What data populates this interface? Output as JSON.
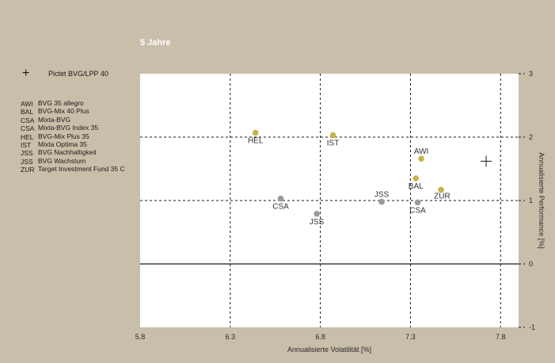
{
  "period_title": "5 Jahre",
  "legend": {
    "benchmark": {
      "symbol": "+",
      "name": "Pictet BVG/LPP 40"
    },
    "items": [
      {
        "code": "AWI",
        "name": "BVG 35 allegro"
      },
      {
        "code": "BAL",
        "name": "BVG-Mix 40 Plus"
      },
      {
        "code": "CSA",
        "name": "Mixta-BVG"
      },
      {
        "code": "CSA",
        "name": "Mixta-BVG Index 35"
      },
      {
        "code": "HEL",
        "name": "BVG-Mix Plus 35"
      },
      {
        "code": "IST",
        "name": "Mixta Optima 35"
      },
      {
        "code": "JSS",
        "name": "BVG Nachhaltigkeit"
      },
      {
        "code": "JSS",
        "name": "BVG Wachstum"
      },
      {
        "code": "ZUR",
        "name": "Target Investment Fund 35 C"
      }
    ]
  },
  "colors": {
    "background": "#c9bea9",
    "plot_bg": "#ffffff",
    "gold": "#c8b34a",
    "grey": "#9a9a9a",
    "grid": "#1a1a1a"
  },
  "chart_data": {
    "type": "scatter",
    "title": "5 Jahre",
    "xlabel": "Annualisierte Volatilität [%]",
    "ylabel": "Annualisierte Performance [%]",
    "xlim": [
      5.8,
      7.9
    ],
    "ylim": [
      -1,
      3
    ],
    "x_ticks": [
      "5.8",
      "6.3",
      "6.8",
      "7.3",
      "7.8"
    ],
    "y_ticks": [
      "3",
      "2",
      "1",
      "0",
      "-1"
    ],
    "x_tick_values": [
      5.8,
      6.3,
      6.8,
      7.3,
      7.8
    ],
    "y_tick_values": [
      3,
      2,
      1,
      0,
      -1
    ],
    "grid": "dashed",
    "points": [
      {
        "label": "HEL",
        "x": 6.44,
        "y": 2.07,
        "color": "gold",
        "label_pos": "below"
      },
      {
        "label": "IST",
        "x": 6.87,
        "y": 2.03,
        "color": "gold",
        "label_pos": "below"
      },
      {
        "label": "AWI",
        "x": 7.36,
        "y": 1.66,
        "color": "gold",
        "label_pos": "above"
      },
      {
        "label": "BAL",
        "x": 7.33,
        "y": 1.35,
        "color": "gold",
        "label_pos": "below"
      },
      {
        "label": "ZUR",
        "x": 7.47,
        "y": 1.17,
        "color": "gold",
        "label_pos": "below-right"
      },
      {
        "label": "JSS",
        "x": 7.14,
        "y": 0.98,
        "color": "grey",
        "label_pos": "above"
      },
      {
        "label": "CSA",
        "x": 7.34,
        "y": 0.97,
        "color": "grey",
        "label_pos": "below"
      },
      {
        "label": "CSA",
        "x": 6.58,
        "y": 1.03,
        "color": "grey",
        "label_pos": "below"
      },
      {
        "label": "JSS",
        "x": 6.78,
        "y": 0.79,
        "color": "grey",
        "label_pos": "below"
      }
    ],
    "benchmark": {
      "label": "Pictet BVG/LPP 40",
      "x": 7.72,
      "y": 1.62
    }
  }
}
